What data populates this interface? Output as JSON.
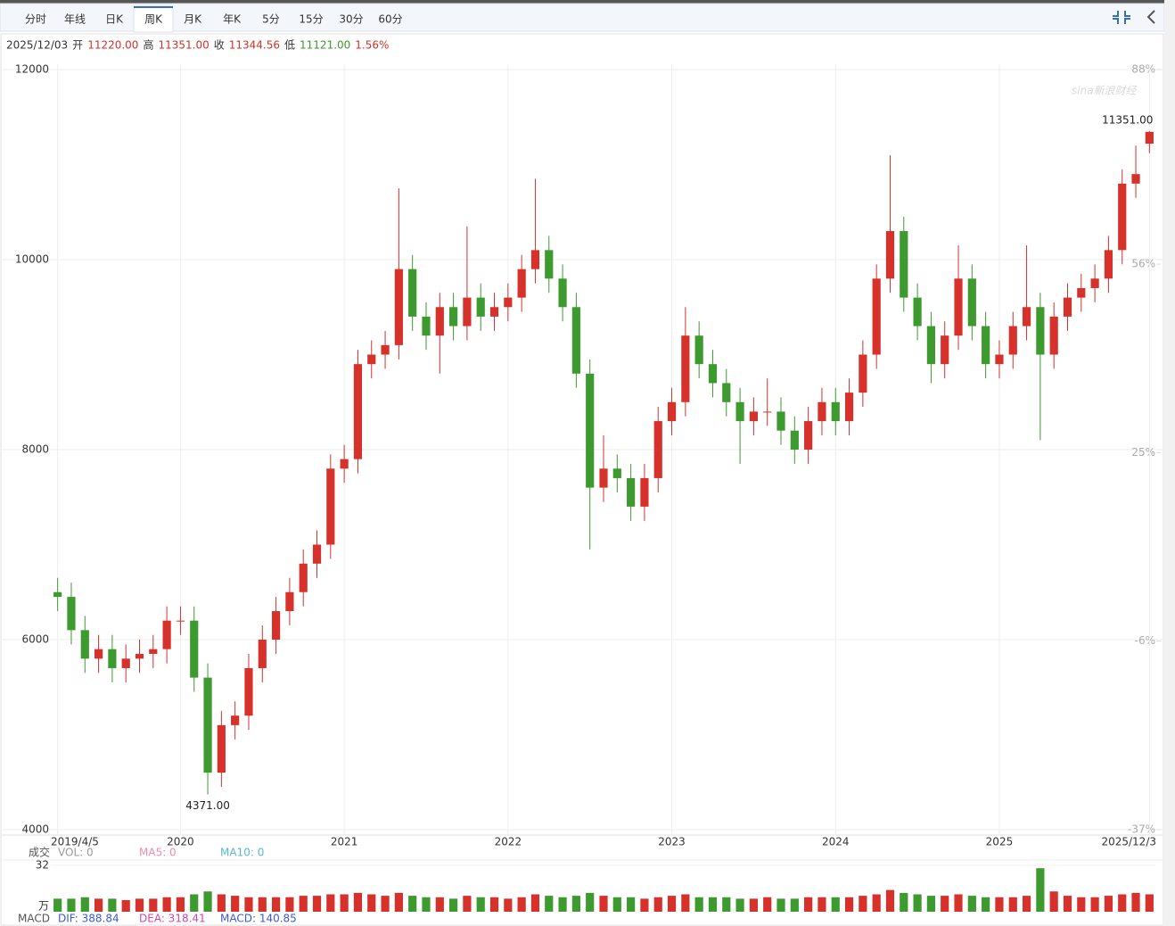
{
  "tabs": [
    "分时",
    "年线",
    "日K",
    "周K",
    "月K",
    "年K",
    "5分",
    "15分",
    "30分",
    "60分"
  ],
  "quote": {
    "date": "2025/12/03",
    "items": [
      {
        "label": "开",
        "value": "11220.00",
        "color": "#d6312b"
      },
      {
        "label": "高",
        "value": "11351.00",
        "color": "#d6312b"
      },
      {
        "label": "收",
        "value": "11344.56",
        "color": "#d6312b"
      },
      {
        "label": "低",
        "value": "11121.00",
        "color": "#3d9a2f"
      }
    ],
    "change": "1.56%",
    "change_color": "#d6312b"
  },
  "watermark": "sina新浪财经",
  "chart_data": {
    "type": "candlestick",
    "open": [
      6500,
      6450,
      6100,
      5800,
      5900,
      5700,
      5800,
      5850,
      5900,
      6200,
      6200,
      5600,
      4600,
      5100,
      5200,
      5700,
      6000,
      6300,
      6500,
      6800,
      7000,
      7800,
      7900,
      8900,
      9000,
      9100,
      9900,
      9400,
      9200,
      9500,
      9300,
      9600,
      9400,
      9500,
      9600,
      9900,
      10100,
      9800,
      9500,
      8800,
      7600,
      7800,
      7700,
      7400,
      7700,
      8300,
      8500,
      9200,
      8900,
      8700,
      8500,
      8300,
      8400,
      8400,
      8200,
      8000,
      8300,
      8500,
      8300,
      8600,
      9000,
      9800,
      10300,
      9600,
      9300,
      8900,
      9200,
      9800,
      9300,
      8900,
      9000,
      9300,
      9500,
      9000,
      9400,
      9600,
      9700,
      9800,
      10100,
      10800,
      11220
    ],
    "high": [
      6650,
      6600,
      6250,
      6050,
      6050,
      5950,
      6000,
      6050,
      6350,
      6350,
      6350,
      5750,
      5250,
      5350,
      5850,
      6150,
      6450,
      6650,
      6950,
      7150,
      7950,
      8050,
      9050,
      9150,
      9250,
      10750,
      10050,
      9550,
      9650,
      9650,
      10350,
      9750,
      9650,
      9750,
      10050,
      10850,
      10250,
      9950,
      9650,
      8950,
      8150,
      7950,
      7850,
      7850,
      8450,
      8650,
      9500,
      9350,
      9050,
      8850,
      8650,
      8550,
      8750,
      8550,
      8350,
      8450,
      8650,
      8650,
      8750,
      9150,
      9950,
      11100,
      10450,
      9750,
      9450,
      9350,
      10150,
      9950,
      9450,
      9150,
      9450,
      10150,
      9650,
      9550,
      9750,
      9850,
      9950,
      10250,
      10950,
      11200,
      11351
    ],
    "low": [
      6300,
      5950,
      5650,
      5650,
      5550,
      5550,
      5650,
      5700,
      5750,
      6050,
      5450,
      4371,
      4450,
      4950,
      5050,
      5550,
      5850,
      6150,
      6350,
      6650,
      6850,
      7650,
      7750,
      8750,
      8850,
      8950,
      9250,
      9050,
      8800,
      9150,
      9150,
      9250,
      9250,
      9350,
      9450,
      9750,
      9650,
      9350,
      8650,
      6950,
      7450,
      7550,
      7250,
      7250,
      7550,
      8150,
      8350,
      8750,
      8550,
      8350,
      7850,
      8150,
      8250,
      8050,
      7850,
      7850,
      8150,
      8150,
      8150,
      8450,
      8850,
      9650,
      9450,
      9150,
      8700,
      8750,
      9050,
      9150,
      8750,
      8750,
      8850,
      9150,
      8100,
      8850,
      9250,
      9450,
      9550,
      9650,
      9950,
      10650,
      11121
    ],
    "close": [
      6450,
      6100,
      5800,
      5900,
      5700,
      5800,
      5850,
      5900,
      6200,
      6200,
      5600,
      4600,
      5100,
      5200,
      5700,
      6000,
      6300,
      6500,
      6800,
      7000,
      7800,
      7900,
      8900,
      9000,
      9100,
      9900,
      9400,
      9200,
      9500,
      9300,
      9600,
      9400,
      9500,
      9600,
      9900,
      10100,
      9800,
      9500,
      8800,
      7600,
      7800,
      7700,
      7400,
      7700,
      8300,
      8500,
      9200,
      8900,
      8700,
      8500,
      8300,
      8400,
      8400,
      8200,
      8000,
      8300,
      8500,
      8300,
      8600,
      9000,
      9800,
      10300,
      9600,
      9300,
      8900,
      9200,
      9800,
      9300,
      8900,
      9000,
      9300,
      9500,
      9000,
      9400,
      9600,
      9700,
      9800,
      10100,
      10800,
      10900,
      11344.56
    ],
    "up_color": "#d6312b",
    "down_color": "#3d9a2f",
    "max_label": "11351.00",
    "min_label": "4371.00",
    "xlim": [
      -0.5,
      80.5
    ],
    "xticks": [
      {
        "value": 0,
        "label": "2019/4/5"
      },
      {
        "value": 9,
        "label": "2020"
      },
      {
        "value": 21,
        "label": "2021"
      },
      {
        "value": 33,
        "label": "2022"
      },
      {
        "value": 45,
        "label": "2023"
      },
      {
        "value": 57,
        "label": "2024"
      },
      {
        "value": 69,
        "label": "2025"
      },
      {
        "value": 80,
        "label": "2025/12/3"
      }
    ],
    "ylim": [
      4000,
      12000
    ],
    "yticks": [
      4000,
      6000,
      8000,
      10000,
      12000
    ],
    "y2lim": [
      -37,
      88
    ],
    "y2ticks": [
      {
        "value": -37,
        "label": "-37%"
      },
      {
        "value": -6,
        "label": "-6%"
      },
      {
        "value": 25,
        "label": "25%"
      },
      {
        "value": 56,
        "label": "56%"
      },
      {
        "value": 88,
        "label": "88%"
      }
    ],
    "grid": true,
    "volume": {
      "title": "成交",
      "vol_label": "VOL: 0",
      "ma5_label": "MA5: 0",
      "ma10_label": "MA10: 0",
      "unit": "万",
      "ylim": [
        0,
        32
      ],
      "yticks": [
        32
      ],
      "values": [
        9,
        9,
        10,
        9,
        9,
        8,
        9,
        9,
        10,
        10,
        12,
        14,
        12,
        11,
        10,
        10,
        10,
        10,
        11,
        11,
        12,
        12,
        13,
        12,
        11,
        13,
        11,
        10,
        10,
        9,
        11,
        10,
        10,
        9,
        10,
        12,
        11,
        10,
        11,
        13,
        11,
        10,
        10,
        9,
        10,
        11,
        12,
        10,
        10,
        10,
        9,
        9,
        10,
        9,
        9,
        10,
        10,
        10,
        10,
        11,
        12,
        15,
        13,
        12,
        11,
        11,
        12,
        11,
        10,
        10,
        10,
        11,
        30,
        14,
        11,
        10,
        10,
        11,
        12,
        13,
        12
      ]
    },
    "macd": {
      "title": "MACD",
      "dif": "DIF: 388.84",
      "dea": "DEA: 318.41",
      "macd": "MACD: 140.85"
    }
  }
}
